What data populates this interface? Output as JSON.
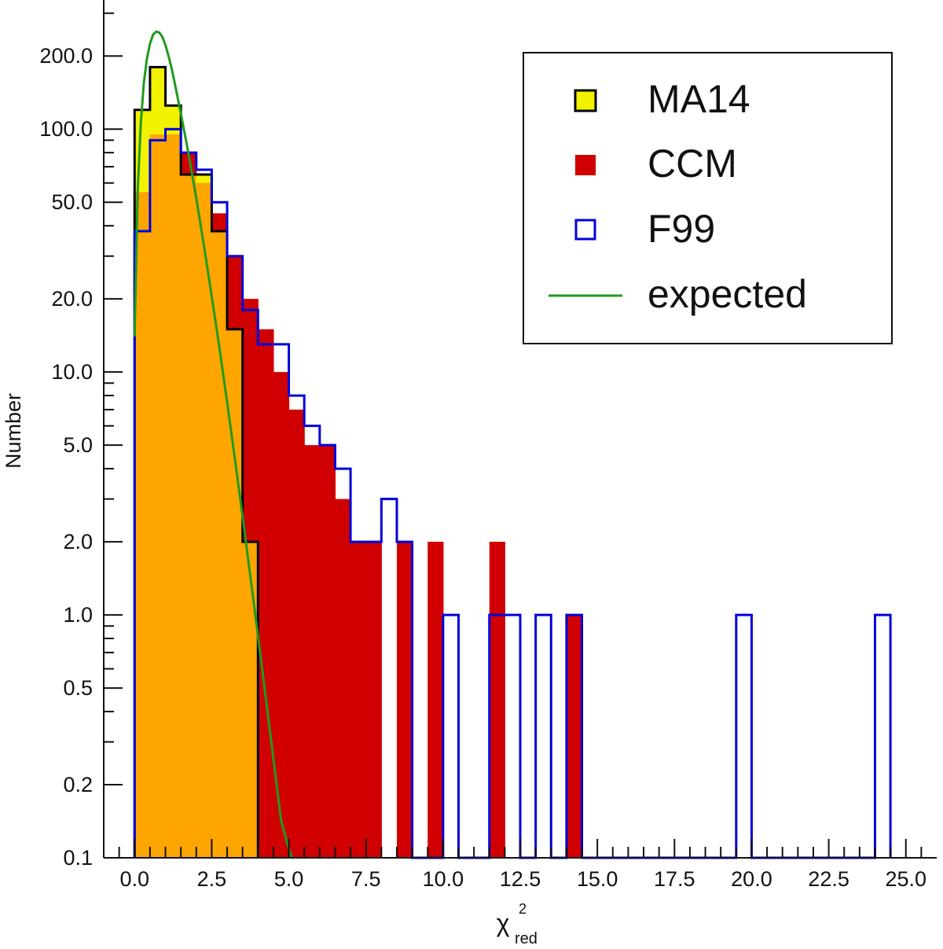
{
  "chart_data": {
    "type": "histogram",
    "title": "",
    "xlabel": "χ",
    "xlabel_superscript": "2",
    "xlabel_subscript": "red",
    "ylabel": "Number",
    "yscale": "log",
    "xlim": [
      -1.0,
      26.0
    ],
    "ylim": [
      0.1,
      340
    ],
    "bin_width": 0.5,
    "x_ticks": [
      0,
      2.5,
      5,
      7.5,
      10,
      12.5,
      15,
      17.5,
      20,
      22.5,
      25
    ],
    "x_tick_labels": [
      "0.0",
      "2.5",
      "5.0",
      "7.5",
      "10.0",
      "12.5",
      "15.0",
      "17.5",
      "20.0",
      "22.5",
      "25.0"
    ],
    "y_ticks": [
      0.1,
      0.2,
      0.5,
      1,
      2,
      5,
      10,
      20,
      50,
      100,
      200
    ],
    "y_tick_labels": [
      "0.1",
      "0.2",
      "0.5",
      "1.0",
      "2.0",
      "5.0",
      "10.0",
      "20.0",
      "50.0",
      "100.0",
      "200.0"
    ],
    "colors": {
      "ma14_fill": "#f2f200",
      "ccm_fill": "#d00000",
      "overlap_fill": "#ffa500",
      "ma14_edge": "#000000",
      "f99_edge": "#0000dd",
      "expected_line": "#1f9a1f"
    },
    "series": [
      {
        "name": "MA14",
        "style": "filled-step",
        "bin_starts": [
          0,
          0.5,
          1,
          1.5,
          2,
          2.5,
          3,
          3.5
        ],
        "values": [
          120,
          180,
          125,
          65,
          65,
          38,
          15,
          2
        ]
      },
      {
        "name": "CCM",
        "style": "filled",
        "bin_starts": [
          0,
          0.5,
          1,
          1.5,
          2,
          2.5,
          3,
          3.5,
          4,
          4.5,
          5,
          5.5,
          6,
          6.5,
          7,
          7.5,
          8,
          8.5,
          9,
          9.5,
          10,
          10.5,
          11,
          11.5,
          12,
          12.5,
          13,
          13.5,
          14
        ],
        "values": [
          55,
          95,
          95,
          80,
          60,
          45,
          30,
          20,
          15,
          10,
          7,
          5,
          5,
          3,
          2,
          2,
          0,
          2,
          0,
          2,
          0,
          0,
          0,
          2,
          0,
          0,
          0,
          0,
          1
        ]
      },
      {
        "name": "F99",
        "style": "open-step",
        "bin_starts": [
          0,
          0.5,
          1,
          1.5,
          2,
          2.5,
          3,
          3.5,
          4,
          4.5,
          5,
          5.5,
          6,
          6.5,
          7,
          7.5,
          8,
          8.5,
          9,
          9.5,
          10,
          10.5,
          11,
          11.5,
          12,
          12.5,
          13,
          13.5,
          14,
          14.5,
          15,
          15.5,
          16,
          16.5,
          17,
          17.5,
          18,
          18.5,
          19,
          19.5,
          20,
          20.5,
          21,
          21.5,
          22,
          22.5,
          23,
          23.5,
          24
        ],
        "values": [
          38,
          90,
          100,
          80,
          68,
          50,
          30,
          18,
          13,
          13,
          8,
          6,
          5,
          4,
          2,
          2,
          3,
          2,
          0,
          0,
          1,
          0,
          0,
          1,
          1,
          0,
          1,
          0,
          1,
          0,
          0,
          0,
          0,
          0,
          0,
          0,
          0,
          0,
          0,
          1,
          0,
          0,
          0,
          0,
          0,
          0,
          0,
          0,
          1
        ]
      },
      {
        "name": "expected",
        "style": "line",
        "x": [
          0,
          0.1,
          0.2,
          0.3,
          0.4,
          0.5,
          0.6,
          0.7,
          0.8,
          0.9,
          1.0,
          1.1,
          1.2,
          1.3,
          1.5,
          1.75,
          2.0,
          2.25,
          2.5,
          2.75,
          3.0,
          3.25,
          3.5,
          3.75,
          4.0,
          4.25,
          4.5,
          4.75,
          5.0,
          5.1
        ],
        "y": [
          14,
          55,
          105,
          155,
          195,
          225,
          245,
          252,
          250,
          240,
          222,
          200,
          178,
          155,
          116,
          79,
          52,
          33,
          20.5,
          12.6,
          7.5,
          4.4,
          2.55,
          1.45,
          0.82,
          0.46,
          0.255,
          0.142,
          0.109,
          0.1
        ]
      }
    ],
    "legend": {
      "position": "top-right",
      "entries": [
        {
          "label": "MA14",
          "marker": "filled-square-outlined"
        },
        {
          "label": "CCM",
          "marker": "filled-square"
        },
        {
          "label": "F99",
          "marker": "open-square"
        },
        {
          "label": "expected",
          "marker": "line"
        }
      ]
    }
  }
}
